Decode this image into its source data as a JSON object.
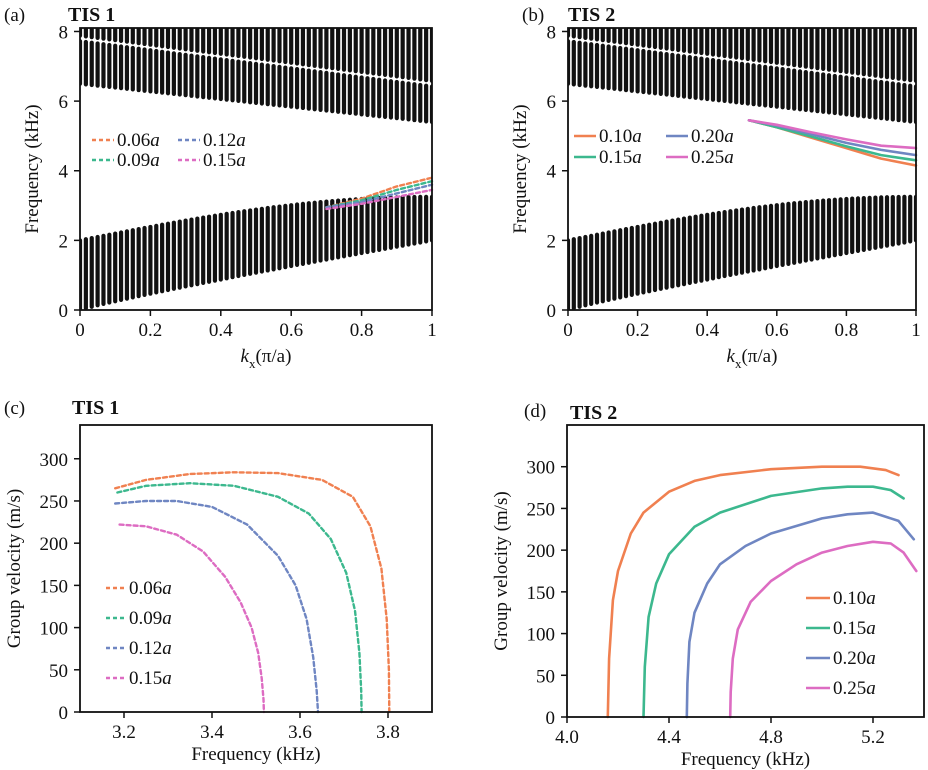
{
  "colors": {
    "c1": "#f08050",
    "c2": "#3cb88e",
    "c3": "#6f86c2",
    "c4": "#dd6cc2",
    "band": "#111111"
  },
  "chart_data": [
    {
      "panel": "(a)",
      "title": "TIS 1",
      "type": "line",
      "xlabel_main": "k",
      "xlabel_sub": "x",
      "xlabel_tail": "(π/a)",
      "ylabel": "Frequency (kHz)",
      "xlim": [
        0,
        1
      ],
      "ylim": [
        0,
        8.1
      ],
      "xticks": [
        "0",
        "0.2",
        "0.4",
        "0.6",
        "0.8",
        "1"
      ],
      "yticks": [
        "0",
        "2",
        "4",
        "6",
        "8"
      ],
      "bands": [
        {
          "name": "lower bulk band",
          "lower": [
            0,
            2.0
          ],
          "upper": [
            2.0,
            3.25
          ]
        },
        {
          "name": "upper bulk band",
          "lower": [
            6.5,
            5.4
          ],
          "upper": [
            8.1,
            8.1
          ],
          "inner": [
            7.8,
            6.5
          ]
        }
      ],
      "legend": [
        {
          "num": "0.06",
          "unit": "a",
          "color": "c1"
        },
        {
          "num": "0.12",
          "unit": "a",
          "color": "c3"
        },
        {
          "num": "0.09",
          "unit": "a",
          "color": "c2"
        },
        {
          "num": "0.15",
          "unit": "a",
          "color": "c4"
        }
      ],
      "series": [
        {
          "name": "0.06a",
          "color": "c1",
          "dashed": true,
          "x": [
            0.7,
            0.8,
            0.9,
            1.0
          ],
          "y": [
            2.95,
            3.2,
            3.55,
            3.8
          ]
        },
        {
          "name": "0.09a",
          "color": "c2",
          "dashed": true,
          "x": [
            0.7,
            0.8,
            0.9,
            1.0
          ],
          "y": [
            2.95,
            3.15,
            3.45,
            3.7
          ]
        },
        {
          "name": "0.12a",
          "color": "c3",
          "dashed": true,
          "x": [
            0.7,
            0.8,
            0.9,
            1.0
          ],
          "y": [
            2.95,
            3.1,
            3.35,
            3.6
          ]
        },
        {
          "name": "0.15a",
          "color": "c4",
          "dashed": true,
          "x": [
            0.7,
            0.8,
            0.9,
            1.0
          ],
          "y": [
            2.9,
            3.05,
            3.25,
            3.45
          ]
        }
      ]
    },
    {
      "panel": "(b)",
      "title": "TIS 2",
      "type": "line",
      "xlabel_main": "k",
      "xlabel_sub": "x",
      "xlabel_tail": "(π/a)",
      "ylabel": "Frequency (kHz)",
      "xlim": [
        0,
        1
      ],
      "ylim": [
        0,
        8.1
      ],
      "xticks": [
        "0",
        "0.2",
        "0.4",
        "0.6",
        "0.8",
        "1"
      ],
      "yticks": [
        "0",
        "2",
        "4",
        "6",
        "8"
      ],
      "bands": [
        {
          "name": "lower bulk band",
          "lower": [
            0,
            2.0
          ],
          "upper": [
            2.0,
            3.25
          ]
        },
        {
          "name": "upper bulk band",
          "lower": [
            6.5,
            5.4
          ],
          "upper": [
            8.1,
            8.1
          ],
          "inner": [
            7.8,
            6.5
          ]
        }
      ],
      "legend": [
        {
          "num": "0.10",
          "unit": "a",
          "color": "c1"
        },
        {
          "num": "0.20",
          "unit": "a",
          "color": "c3"
        },
        {
          "num": "0.15",
          "unit": "a",
          "color": "c2"
        },
        {
          "num": "0.25",
          "unit": "a",
          "color": "c4"
        }
      ],
      "series": [
        {
          "name": "0.10a",
          "color": "c1",
          "dashed": false,
          "x": [
            0.52,
            0.6,
            0.7,
            0.8,
            0.9,
            1.0
          ],
          "y": [
            5.45,
            5.25,
            4.95,
            4.65,
            4.35,
            4.15
          ]
        },
        {
          "name": "0.15a",
          "color": "c2",
          "dashed": false,
          "x": [
            0.52,
            0.6,
            0.7,
            0.8,
            0.9,
            1.0
          ],
          "y": [
            5.45,
            5.25,
            4.98,
            4.7,
            4.45,
            4.3
          ]
        },
        {
          "name": "0.20a",
          "color": "c3",
          "dashed": false,
          "x": [
            0.52,
            0.6,
            0.7,
            0.8,
            0.9,
            1.0
          ],
          "y": [
            5.45,
            5.3,
            5.05,
            4.8,
            4.6,
            4.45
          ]
        },
        {
          "name": "0.25a",
          "color": "c4",
          "dashed": false,
          "x": [
            0.52,
            0.6,
            0.7,
            0.8,
            0.9,
            1.0
          ],
          "y": [
            5.45,
            5.32,
            5.1,
            4.9,
            4.72,
            4.65
          ]
        }
      ]
    },
    {
      "panel": "(c)",
      "title": "TIS 1",
      "type": "line",
      "xlabel": "Frequency (kHz)",
      "ylabel": "Group velocity (m/s)",
      "xlim": [
        3.1,
        3.9
      ],
      "ylim": [
        0,
        340
      ],
      "xticks": [
        {
          "v": 3.2,
          "label": "3.2"
        },
        {
          "v": 3.4,
          "label": "3.4"
        },
        {
          "v": 3.6,
          "label": "3.6"
        },
        {
          "v": 3.8,
          "label": "3.8"
        }
      ],
      "yticks": [
        {
          "v": 0,
          "label": "0"
        },
        {
          "v": 50,
          "label": "50"
        },
        {
          "v": 100,
          "label": "100"
        },
        {
          "v": 150,
          "label": "150"
        },
        {
          "v": 200,
          "label": "200"
        },
        {
          "v": 250,
          "label": "250"
        },
        {
          "v": 300,
          "label": "300"
        }
      ],
      "legend": [
        {
          "num": "0.06",
          "unit": "a",
          "color": "c1"
        },
        {
          "num": "0.09",
          "unit": "a",
          "color": "c2"
        },
        {
          "num": "0.12",
          "unit": "a",
          "color": "c3"
        },
        {
          "num": "0.15",
          "unit": "a",
          "color": "c4"
        }
      ],
      "series": [
        {
          "name": "0.06a",
          "color": "c1",
          "dashed": true,
          "x": [
            3.18,
            3.25,
            3.35,
            3.45,
            3.55,
            3.65,
            3.72,
            3.76,
            3.785,
            3.797,
            3.802,
            3.803
          ],
          "y": [
            265,
            275,
            282,
            284,
            283,
            275,
            255,
            220,
            170,
            110,
            50,
            0
          ]
        },
        {
          "name": "0.09a",
          "color": "c2",
          "dashed": true,
          "x": [
            3.185,
            3.25,
            3.35,
            3.45,
            3.55,
            3.62,
            3.67,
            3.705,
            3.725,
            3.735,
            3.739,
            3.74
          ],
          "y": [
            260,
            268,
            271,
            268,
            255,
            235,
            205,
            165,
            120,
            70,
            25,
            0
          ]
        },
        {
          "name": "0.12a",
          "color": "c3",
          "dashed": true,
          "x": [
            3.18,
            3.25,
            3.32,
            3.4,
            3.48,
            3.55,
            3.59,
            3.615,
            3.63,
            3.638,
            3.641
          ],
          "y": [
            247,
            250,
            250,
            243,
            222,
            185,
            150,
            110,
            65,
            25,
            0
          ]
        },
        {
          "name": "0.15a",
          "color": "c4",
          "dashed": true,
          "x": [
            3.19,
            3.25,
            3.32,
            3.38,
            3.43,
            3.465,
            3.49,
            3.505,
            3.513,
            3.517,
            3.518
          ],
          "y": [
            222,
            220,
            210,
            190,
            160,
            130,
            100,
            70,
            40,
            15,
            0
          ]
        }
      ]
    },
    {
      "panel": "(d)",
      "title": "TIS 2",
      "type": "line",
      "xlabel": "Frequency (kHz)",
      "ylabel": "Group velocity (m/s)",
      "xlim": [
        4.0,
        5.4
      ],
      "ylim": [
        0,
        350
      ],
      "xticks": [
        {
          "v": 4.0,
          "label": "4.0"
        },
        {
          "v": 4.4,
          "label": "4.4"
        },
        {
          "v": 4.8,
          "label": "4.8"
        },
        {
          "v": 5.2,
          "label": "5.2"
        }
      ],
      "yticks": [
        {
          "v": 0,
          "label": "0"
        },
        {
          "v": 50,
          "label": "50"
        },
        {
          "v": 100,
          "label": "100"
        },
        {
          "v": 150,
          "label": "150"
        },
        {
          "v": 200,
          "label": "200"
        },
        {
          "v": 250,
          "label": "250"
        },
        {
          "v": 300,
          "label": "300"
        }
      ],
      "legend": [
        {
          "num": "0.10",
          "unit": "a",
          "color": "c1"
        },
        {
          "num": "0.15",
          "unit": "a",
          "color": "c2"
        },
        {
          "num": "0.20",
          "unit": "a",
          "color": "c3"
        },
        {
          "num": "0.25",
          "unit": "a",
          "color": "c4"
        }
      ],
      "series": [
        {
          "name": "0.10a",
          "color": "c1",
          "dashed": false,
          "x": [
            4.16,
            4.165,
            4.18,
            4.2,
            4.25,
            4.3,
            4.4,
            4.5,
            4.6,
            4.8,
            5.0,
            5.15,
            5.25,
            5.3
          ],
          "y": [
            0,
            70,
            140,
            175,
            220,
            245,
            270,
            283,
            290,
            297,
            300,
            300,
            296,
            290
          ]
        },
        {
          "name": "0.15a",
          "color": "c2",
          "dashed": false,
          "x": [
            4.3,
            4.305,
            4.32,
            4.35,
            4.4,
            4.5,
            4.6,
            4.8,
            5.0,
            5.1,
            5.2,
            5.27,
            5.32
          ],
          "y": [
            0,
            60,
            120,
            160,
            195,
            228,
            245,
            265,
            274,
            276,
            276,
            272,
            262
          ]
        },
        {
          "name": "0.20a",
          "color": "c3",
          "dashed": false,
          "x": [
            4.47,
            4.472,
            4.48,
            4.5,
            4.55,
            4.6,
            4.7,
            4.8,
            5.0,
            5.1,
            5.2,
            5.3,
            5.36
          ],
          "y": [
            0,
            40,
            90,
            125,
            160,
            183,
            205,
            220,
            238,
            243,
            245,
            235,
            213
          ]
        },
        {
          "name": "0.25a",
          "color": "c4",
          "dashed": false,
          "x": [
            4.64,
            4.642,
            4.65,
            4.67,
            4.72,
            4.8,
            4.9,
            5.0,
            5.1,
            5.2,
            5.27,
            5.32,
            5.37
          ],
          "y": [
            0,
            30,
            70,
            105,
            138,
            163,
            183,
            197,
            205,
            210,
            208,
            197,
            175
          ]
        }
      ]
    }
  ]
}
